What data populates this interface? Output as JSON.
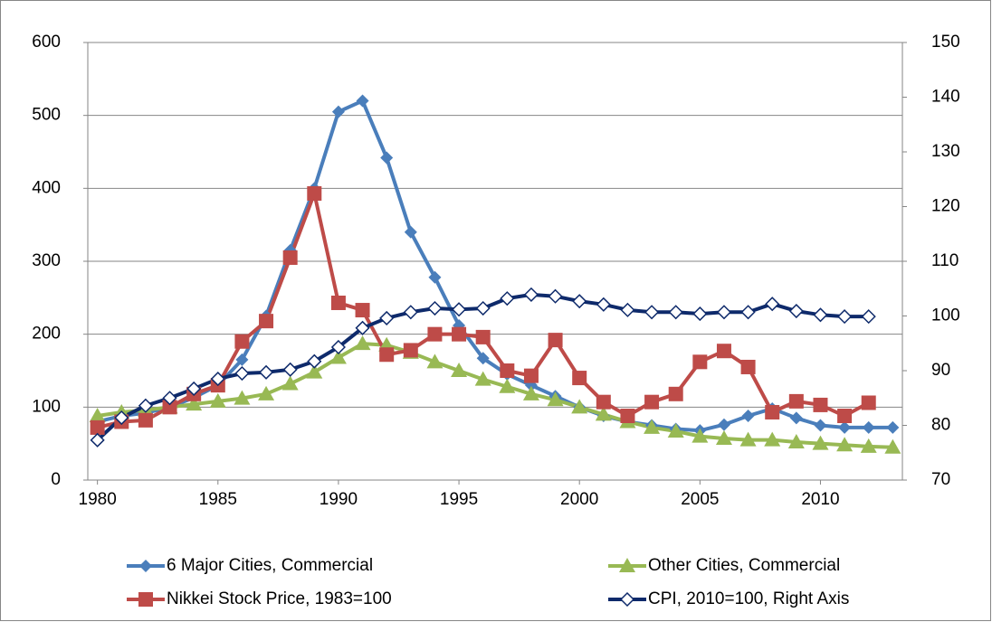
{
  "chart_data": {
    "type": "line",
    "x": [
      1980,
      1981,
      1982,
      1983,
      1984,
      1985,
      1986,
      1987,
      1988,
      1989,
      1990,
      1991,
      1992,
      1993,
      1994,
      1995,
      1996,
      1997,
      1998,
      1999,
      2000,
      2001,
      2002,
      2003,
      2004,
      2005,
      2006,
      2007,
      2008,
      2009,
      2010,
      2011,
      2012,
      2013
    ],
    "xlim": [
      1979.6,
      2013.4
    ],
    "xticks": [
      1980,
      1985,
      1990,
      1995,
      2000,
      2005,
      2010
    ],
    "ylim": [
      0,
      600
    ],
    "yticks": [
      0,
      100,
      200,
      300,
      400,
      500,
      600
    ],
    "y2lim": [
      70,
      150
    ],
    "y2ticks": [
      70,
      80,
      90,
      100,
      110,
      120,
      130,
      140,
      150
    ],
    "grid": true,
    "legend": "bottom",
    "series": [
      {
        "name": "6 Major Cities, Commercial",
        "color": "#4a7ebb",
        "marker": "diamond",
        "values": [
          80,
          88,
          92,
          100,
          113,
          130,
          165,
          225,
          315,
          400,
          505,
          520,
          442,
          340,
          278,
          212,
          167,
          145,
          130,
          115,
          100,
          88,
          80,
          75,
          70,
          68,
          76,
          88,
          98,
          85,
          75,
          72,
          72,
          72
        ]
      },
      {
        "name": "Other Cities, Commercial",
        "color": "#98b954",
        "marker": "triangle",
        "values": [
          88,
          93,
          96,
          100,
          104,
          108,
          112,
          118,
          132,
          148,
          168,
          187,
          185,
          175,
          162,
          150,
          138,
          128,
          118,
          110,
          100,
          90,
          80,
          72,
          67,
          60,
          57,
          55,
          55,
          52,
          50,
          48,
          46,
          45
        ]
      },
      {
        "name": "Nikkei Stock Price, 1983=100",
        "color": "#be4b48",
        "marker": "square",
        "values": [
          72,
          80,
          82,
          100,
          118,
          130,
          190,
          218,
          305,
          393,
          243,
          233,
          172,
          178,
          200,
          200,
          196,
          150,
          143,
          192,
          140,
          107,
          88,
          107,
          118,
          162,
          177,
          155,
          93,
          108,
          103,
          88,
          106,
          null
        ]
      },
      {
        "name": "CPI, 2010=100, Right Axis",
        "color": "#0e2a6b",
        "marker": "open-diamond",
        "axis": "y2",
        "values": [
          77.3,
          81.4,
          83.6,
          85,
          86.7,
          88.5,
          89.5,
          89.7,
          90.2,
          91.7,
          94.3,
          97.8,
          99.6,
          100.7,
          101.4,
          101.2,
          101.4,
          103.2,
          103.9,
          103.6,
          102.7,
          102.1,
          101.1,
          100.7,
          100.7,
          100.4,
          100.7,
          100.7,
          102.2,
          100.9,
          100.2,
          99.9,
          99.9,
          null
        ]
      }
    ]
  }
}
